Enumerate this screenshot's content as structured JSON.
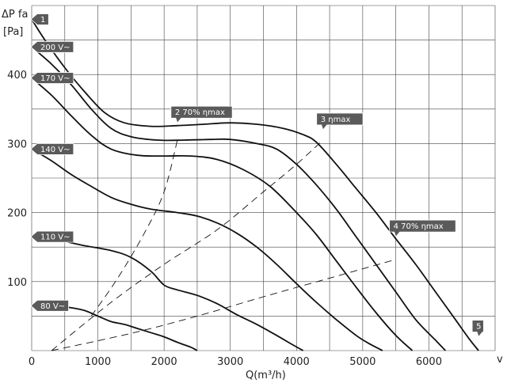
{
  "chart_data": {
    "type": "line",
    "y_title": "ΔP fa",
    "y_unit": "[Pa]",
    "x_title": "Q(m³/h)",
    "x_unit_right": "v",
    "xlim": [
      0,
      7000
    ],
    "ylim": [
      0,
      500
    ],
    "x_ticks": [
      0,
      1000,
      2000,
      3000,
      4000,
      5000,
      6000
    ],
    "y_ticks": [
      100,
      200,
      300,
      400
    ],
    "x_grid_step": 500,
    "y_grid_step": 50,
    "grid": true,
    "colors": {
      "curve": "#111111",
      "tag_fill": "#5a5a5a",
      "tag_text": "#ffffff",
      "grid": "#444444"
    },
    "series": [
      {
        "name": "1",
        "points": [
          [
            0,
            480
          ],
          [
            200,
            450
          ],
          [
            500,
            410
          ],
          [
            800,
            375
          ],
          [
            1100,
            345
          ],
          [
            1400,
            330
          ],
          [
            1800,
            325
          ],
          [
            2200,
            326
          ],
          [
            2600,
            328
          ],
          [
            3000,
            330
          ],
          [
            3400,
            328
          ],
          [
            3800,
            322
          ],
          [
            4100,
            313
          ],
          [
            4300,
            302
          ],
          [
            4600,
            270
          ],
          [
            4900,
            235
          ],
          [
            5200,
            200
          ],
          [
            5500,
            162
          ],
          [
            5800,
            125
          ],
          [
            6100,
            85
          ],
          [
            6400,
            45
          ],
          [
            6600,
            18
          ],
          [
            6750,
            0
          ]
        ]
      },
      {
        "name": "200 V~",
        "points": [
          [
            0,
            440
          ],
          [
            300,
            415
          ],
          [
            600,
            385
          ],
          [
            900,
            350
          ],
          [
            1200,
            322
          ],
          [
            1500,
            310
          ],
          [
            1900,
            305
          ],
          [
            2300,
            305
          ],
          [
            2700,
            306
          ],
          [
            3000,
            306
          ],
          [
            3400,
            300
          ],
          [
            3700,
            292
          ],
          [
            4000,
            270
          ],
          [
            4300,
            240
          ],
          [
            4600,
            205
          ],
          [
            4900,
            165
          ],
          [
            5200,
            125
          ],
          [
            5500,
            85
          ],
          [
            5800,
            45
          ],
          [
            6100,
            15
          ],
          [
            6250,
            0
          ]
        ]
      },
      {
        "name": "170 V~",
        "points": [
          [
            0,
            395
          ],
          [
            300,
            370
          ],
          [
            600,
            340
          ],
          [
            900,
            312
          ],
          [
            1200,
            292
          ],
          [
            1600,
            283
          ],
          [
            2000,
            282
          ],
          [
            2400,
            282
          ],
          [
            2800,
            277
          ],
          [
            3200,
            262
          ],
          [
            3600,
            238
          ],
          [
            4000,
            200
          ],
          [
            4300,
            168
          ],
          [
            4600,
            130
          ],
          [
            4900,
            92
          ],
          [
            5200,
            55
          ],
          [
            5500,
            22
          ],
          [
            5750,
            0
          ]
        ]
      },
      {
        "name": "140 V~",
        "points": [
          [
            0,
            292
          ],
          [
            300,
            275
          ],
          [
            600,
            255
          ],
          [
            900,
            238
          ],
          [
            1200,
            222
          ],
          [
            1500,
            212
          ],
          [
            1800,
            205
          ],
          [
            2200,
            200
          ],
          [
            2500,
            195
          ],
          [
            2800,
            185
          ],
          [
            3100,
            170
          ],
          [
            3400,
            150
          ],
          [
            3700,
            125
          ],
          [
            4000,
            97
          ],
          [
            4300,
            70
          ],
          [
            4600,
            45
          ],
          [
            4900,
            22
          ],
          [
            5100,
            10
          ],
          [
            5300,
            0
          ]
        ]
      },
      {
        "name": "110 V~",
        "points": [
          [
            0,
            165
          ],
          [
            400,
            160
          ],
          [
            800,
            152
          ],
          [
            1200,
            145
          ],
          [
            1500,
            135
          ],
          [
            1800,
            115
          ],
          [
            2000,
            95
          ],
          [
            2200,
            88
          ],
          [
            2500,
            80
          ],
          [
            2800,
            68
          ],
          [
            3100,
            52
          ],
          [
            3400,
            38
          ],
          [
            3700,
            22
          ],
          [
            3950,
            8
          ],
          [
            4100,
            0
          ]
        ]
      },
      {
        "name": "80 V~",
        "points": [
          [
            0,
            65
          ],
          [
            300,
            65
          ],
          [
            600,
            62
          ],
          [
            800,
            58
          ],
          [
            1000,
            50
          ],
          [
            1200,
            42
          ],
          [
            1400,
            38
          ],
          [
            1600,
            32
          ],
          [
            1800,
            26
          ],
          [
            2000,
            20
          ],
          [
            2200,
            12
          ],
          [
            2400,
            5
          ],
          [
            2500,
            0
          ]
        ]
      }
    ],
    "efficiency_lines": [
      {
        "label": "2  70% ηmax",
        "points": [
          [
            900,
            50
          ],
          [
            1300,
            105
          ],
          [
            1700,
            170
          ],
          [
            2000,
            230
          ],
          [
            2200,
            305
          ]
        ]
      },
      {
        "label": "3   ηmax",
        "points": [
          [
            300,
            0
          ],
          [
            1200,
            70
          ],
          [
            2000,
            125
          ],
          [
            2800,
            175
          ],
          [
            3500,
            230
          ],
          [
            4000,
            270
          ],
          [
            4400,
            305
          ]
        ]
      },
      {
        "label": "4   70% ηmax",
        "points": [
          [
            300,
            0
          ],
          [
            1500,
            25
          ],
          [
            2500,
            50
          ],
          [
            3500,
            78
          ],
          [
            4500,
            105
          ],
          [
            5500,
            132
          ]
        ]
      }
    ],
    "left_tags": [
      {
        "text": "1",
        "y": 480
      },
      {
        "text": "200 V~",
        "y": 440
      },
      {
        "text": "170 V~",
        "y": 395
      },
      {
        "text": "140 V~",
        "y": 292
      },
      {
        "text": "110 V~",
        "y": 165
      },
      {
        "text": "80 V~",
        "y": 65
      }
    ],
    "top_tags": [
      {
        "text": "2  70% ηmax",
        "x": 2200,
        "y": 330
      },
      {
        "text": "3   ηmax",
        "x": 4400,
        "y": 320
      },
      {
        "text": "4   70% ηmax",
        "x": 5500,
        "y": 165
      },
      {
        "text": "5",
        "x": 6750,
        "y": 20
      }
    ]
  }
}
